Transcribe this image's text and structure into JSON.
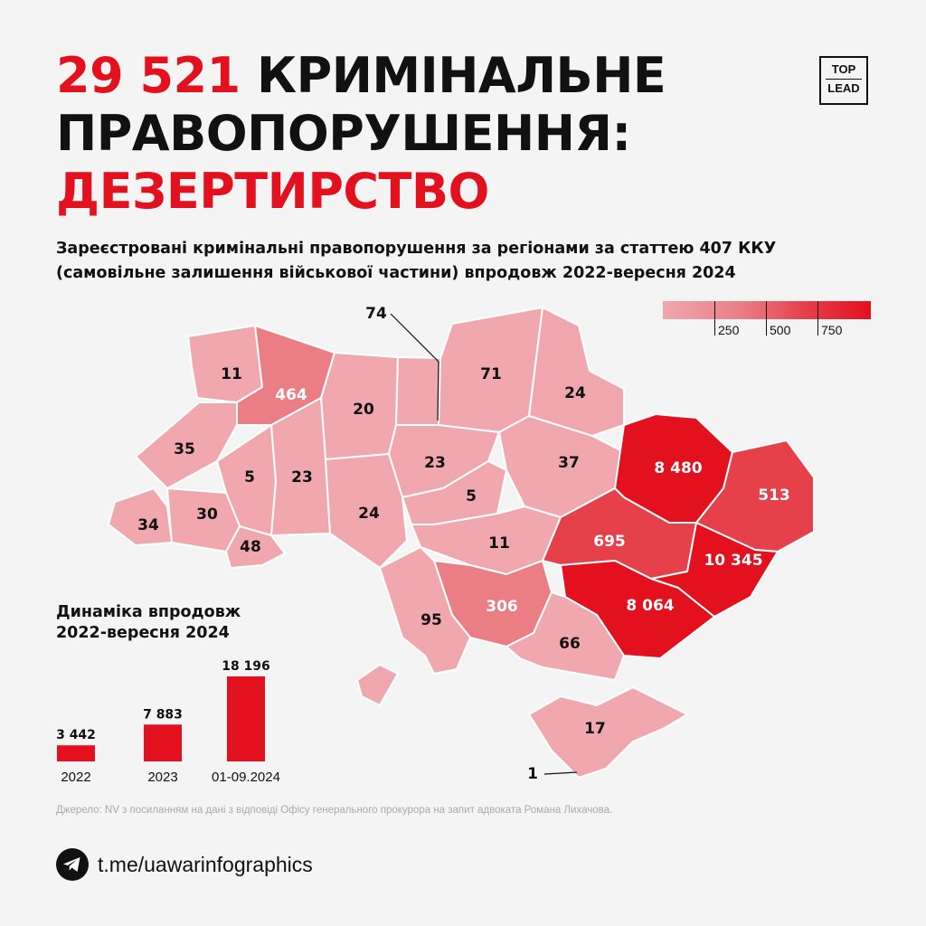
{
  "title": {
    "highlight": "29 521",
    "line1_rest": " КРИМІНАЛЬНЕ",
    "line2": "ПРАВОПОРУШЕННЯ:",
    "line3": "ДЕЗЕРТИРСТВО"
  },
  "logo": {
    "top": "TOP",
    "bottom": "LEAD"
  },
  "subtitle": "Зареєстровані кримінальні правопорушення за регіонами за статтею 407 ККУ (самовільне залишення військової частини) впродовж 2022-вересня 2024",
  "legend": {
    "labels": [
      "250",
      "500",
      "750"
    ]
  },
  "map_data": {
    "title": "",
    "regions": [
      {
        "value": 11
      },
      {
        "value": 464
      },
      {
        "value": 20
      },
      {
        "value": 74
      },
      {
        "value": 71
      },
      {
        "value": 24
      },
      {
        "value": 35
      },
      {
        "value": 5
      },
      {
        "value": 23
      },
      {
        "value": 23
      },
      {
        "value": 37
      },
      {
        "value": 8480
      },
      {
        "value": 513
      },
      {
        "value": 34
      },
      {
        "value": 30
      },
      {
        "value": 24
      },
      {
        "value": 5
      },
      {
        "value": 48
      },
      {
        "value": 11
      },
      {
        "value": 695
      },
      {
        "value": 10345
      },
      {
        "value": 306
      },
      {
        "value": 95
      },
      {
        "value": 8064
      },
      {
        "value": 66
      },
      {
        "value": 17
      },
      {
        "value": 1
      }
    ],
    "labels": [
      "11",
      "464",
      "20",
      "74",
      "71",
      "24",
      "35",
      "5",
      "23",
      "23",
      "37",
      "8 480",
      "513",
      "34",
      "30",
      "24",
      "5",
      "48",
      "11",
      "695",
      "10 345",
      "306",
      "95",
      "8 064",
      "66",
      "17",
      "1"
    ]
  },
  "colors": {
    "accent": "#e3101e",
    "level1": "#f0a8ae",
    "level2": "#eb7d85",
    "level3": "#e6404b",
    "level4": "#e3101e"
  },
  "chart_data": {
    "type": "bar",
    "title": "Динаміка впродовж 2022-вересня 2024",
    "categories": [
      "2022",
      "2023",
      "01-09.2024"
    ],
    "values": [
      3442,
      7883,
      18196
    ],
    "value_labels": [
      "3 442",
      "7 883",
      "18 196"
    ]
  },
  "dynamics": {
    "title_line1": "Динаміка впродовж",
    "title_line2": "2022-вересня 2024"
  },
  "source": "Джерело: NV з посиланням на дані з відповіді Офісу генерального прокурора на запит адвоката Романа Лихачова.",
  "footer": {
    "icon": "telegram-icon",
    "link": "t.me/uawarinfographics"
  }
}
